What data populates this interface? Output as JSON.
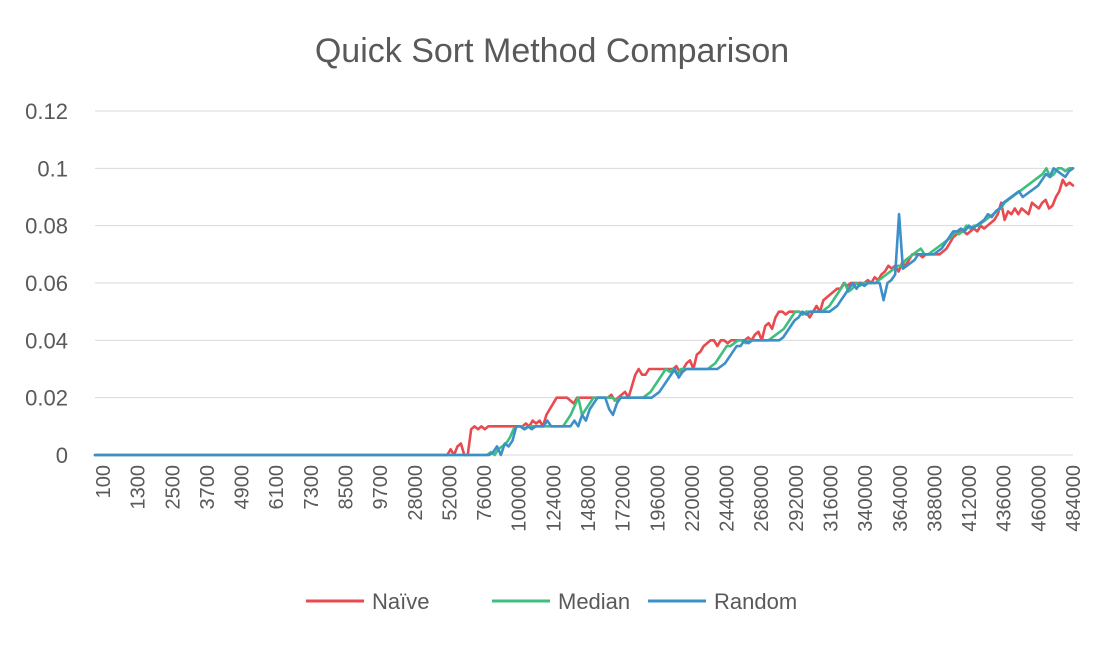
{
  "chart_data": {
    "type": "line",
    "title": "Quick Sort Method Comparison",
    "xlabel": "",
    "ylabel": "",
    "ylim": [
      0,
      0.12
    ],
    "yticks": [
      "0",
      "0.02",
      "0.04",
      "0.06",
      "0.08",
      "0.1",
      "0.12"
    ],
    "grid": true,
    "legend_position": "bottom",
    "x_tick_labels": [
      "100",
      "1300",
      "2500",
      "3700",
      "4900",
      "6100",
      "7300",
      "8500",
      "9700",
      "28000",
      "52000",
      "76000",
      "100000",
      "124000",
      "148000",
      "172000",
      "196000",
      "220000",
      "244000",
      "268000",
      "292000",
      "316000",
      "340000",
      "364000",
      "388000",
      "412000",
      "436000",
      "460000",
      "484000"
    ],
    "series": [
      {
        "name": "Naïve",
        "color": "#e84a4f",
        "values": [
          0,
          0,
          0,
          0,
          0,
          0,
          0,
          0,
          0,
          0,
          0,
          0,
          0,
          0,
          0,
          0,
          0,
          0,
          0,
          0,
          0,
          0,
          0,
          0,
          0,
          0,
          0,
          0,
          0,
          0,
          0,
          0,
          0,
          0,
          0,
          0,
          0,
          0,
          0,
          0,
          0,
          0,
          0,
          0,
          0,
          0,
          0,
          0,
          0,
          0,
          0,
          0,
          0,
          0,
          0,
          0,
          0,
          0,
          0,
          0,
          0,
          0,
          0,
          0,
          0,
          0,
          0,
          0,
          0,
          0,
          0,
          0,
          0,
          0,
          0,
          0,
          0,
          0,
          0,
          0,
          0,
          0,
          0,
          0,
          0,
          0,
          0,
          0,
          0,
          0,
          0,
          0,
          0,
          0,
          0,
          0,
          0,
          0,
          0,
          0,
          0,
          0,
          0,
          0,
          0.002,
          0,
          0.003,
          0.004,
          0,
          0,
          0.009,
          0.01,
          0.009,
          0.01,
          0.009,
          0.01,
          0.01,
          0.01,
          0.01,
          0.01,
          0.01,
          0.01,
          0.01,
          0.01,
          0.01,
          0.01,
          0.011,
          0.01,
          0.012,
          0.011,
          0.012,
          0.01,
          0.014,
          0.016,
          0.018,
          0.02,
          0.02,
          0.02,
          0.02,
          0.019,
          0.018,
          0.02,
          0.02,
          0.02,
          0.02,
          0.02,
          0.02,
          0.02,
          0.02,
          0.02,
          0.02,
          0.021,
          0.019,
          0.02,
          0.021,
          0.022,
          0.02,
          0.024,
          0.028,
          0.03,
          0.028,
          0.028,
          0.03,
          0.03,
          0.03,
          0.03,
          0.03,
          0.03,
          0.03,
          0.03,
          0.031,
          0.029,
          0.03,
          0.032,
          0.033,
          0.03,
          0.035,
          0.036,
          0.038,
          0.039,
          0.04,
          0.04,
          0.038,
          0.04,
          0.04,
          0.039,
          0.04,
          0.04,
          0.04,
          0.04,
          0.04,
          0.041,
          0.04,
          0.042,
          0.043,
          0.04,
          0.045,
          0.046,
          0.044,
          0.048,
          0.05,
          0.05,
          0.049,
          0.05,
          0.05,
          0.05,
          0.05,
          0.049,
          0.05,
          0.048,
          0.05,
          0.052,
          0.05,
          0.054,
          0.055,
          0.056,
          0.057,
          0.058,
          0.058,
          0.06,
          0.059,
          0.06,
          0.06,
          0.06,
          0.06,
          0.06,
          0.061,
          0.06,
          0.062,
          0.061,
          0.063,
          0.064,
          0.066,
          0.065,
          0.066,
          0.064,
          0.067,
          0.066,
          0.068,
          0.07,
          0.07,
          0.07,
          0.069,
          0.07,
          0.07,
          0.07,
          0.07,
          0.07,
          0.071,
          0.072,
          0.074,
          0.076,
          0.077,
          0.078,
          0.078,
          0.077,
          0.078,
          0.079,
          0.078,
          0.08,
          0.079,
          0.08,
          0.081,
          0.082,
          0.084,
          0.088,
          0.082,
          0.085,
          0.084,
          0.086,
          0.084,
          0.086,
          0.085,
          0.084,
          0.088,
          0.087,
          0.086,
          0.088,
          0.089,
          0.086,
          0.087,
          0.09,
          0.092,
          0.096,
          0.094,
          0.095,
          0.094
        ]
      },
      {
        "name": "Median",
        "color": "#3fbf7f",
        "values": [
          0,
          0,
          0,
          0,
          0,
          0,
          0,
          0,
          0,
          0,
          0,
          0,
          0,
          0,
          0,
          0,
          0,
          0,
          0,
          0,
          0,
          0,
          0,
          0,
          0,
          0,
          0,
          0,
          0,
          0,
          0,
          0,
          0,
          0,
          0,
          0,
          0,
          0,
          0,
          0,
          0,
          0,
          0,
          0,
          0,
          0,
          0,
          0,
          0,
          0,
          0,
          0,
          0,
          0,
          0,
          0,
          0,
          0,
          0,
          0,
          0,
          0,
          0,
          0,
          0,
          0,
          0,
          0,
          0,
          0,
          0,
          0,
          0,
          0,
          0,
          0,
          0,
          0,
          0,
          0,
          0,
          0,
          0,
          0,
          0,
          0,
          0,
          0,
          0,
          0,
          0,
          0,
          0,
          0,
          0,
          0,
          0,
          0,
          0,
          0,
          0,
          0,
          0,
          0,
          0.001,
          0,
          0.002,
          0.003,
          0.004,
          0.006,
          0.009,
          0.01,
          0.01,
          0.009,
          0.01,
          0.01,
          0.01,
          0.01,
          0.01,
          0.01,
          0.01,
          0.01,
          0.01,
          0.01,
          0.012,
          0.014,
          0.017,
          0.02,
          0.014,
          0.016,
          0.018,
          0.02,
          0.02,
          0.02,
          0.02,
          0.02,
          0.02,
          0.019,
          0.02,
          0.02,
          0.02,
          0.02,
          0.02,
          0.02,
          0.02,
          0.021,
          0.022,
          0.024,
          0.026,
          0.028,
          0.03,
          0.029,
          0.03,
          0.028,
          0.03,
          0.03,
          0.03,
          0.03,
          0.03,
          0.03,
          0.03,
          0.03,
          0.031,
          0.032,
          0.034,
          0.036,
          0.038,
          0.038,
          0.039,
          0.04,
          0.04,
          0.039,
          0.04,
          0.04,
          0.04,
          0.04,
          0.04,
          0.04,
          0.041,
          0.042,
          0.043,
          0.044,
          0.046,
          0.048,
          0.05,
          0.05,
          0.049,
          0.05,
          0.05,
          0.05,
          0.05,
          0.05,
          0.051,
          0.052,
          0.054,
          0.056,
          0.058,
          0.06,
          0.057,
          0.058,
          0.06,
          0.059,
          0.06,
          0.06,
          0.06,
          0.06,
          0.061,
          0.062,
          0.063,
          0.064,
          0.065,
          0.066,
          0.066,
          0.068,
          0.069,
          0.07,
          0.071,
          0.072,
          0.07,
          0.07,
          0.071,
          0.072,
          0.073,
          0.074,
          0.075,
          0.076,
          0.078,
          0.077,
          0.078,
          0.08,
          0.079,
          0.08,
          0.08,
          0.081,
          0.082,
          0.083,
          0.084,
          0.085,
          0.086,
          0.088,
          0.089,
          0.09,
          0.091,
          0.092,
          0.093,
          0.094,
          0.095,
          0.096,
          0.097,
          0.098,
          0.1,
          0.097,
          0.098,
          0.1,
          0.1,
          0.099,
          0.1,
          0.1
        ]
      },
      {
        "name": "Random",
        "color": "#3d8fc9",
        "values": [
          0,
          0,
          0,
          0,
          0,
          0,
          0,
          0,
          0,
          0,
          0,
          0,
          0,
          0,
          0,
          0,
          0,
          0,
          0,
          0,
          0,
          0,
          0,
          0,
          0,
          0,
          0,
          0,
          0,
          0,
          0,
          0,
          0,
          0,
          0,
          0,
          0,
          0,
          0,
          0,
          0,
          0,
          0,
          0,
          0,
          0,
          0,
          0,
          0,
          0,
          0,
          0,
          0,
          0,
          0,
          0,
          0,
          0,
          0,
          0,
          0,
          0,
          0,
          0,
          0,
          0,
          0,
          0,
          0,
          0,
          0,
          0,
          0,
          0,
          0,
          0,
          0,
          0,
          0,
          0,
          0,
          0,
          0,
          0,
          0,
          0,
          0,
          0,
          0,
          0,
          0,
          0,
          0,
          0,
          0,
          0,
          0,
          0,
          0,
          0,
          0,
          0,
          0,
          0.001,
          0.003,
          0,
          0.004,
          0.003,
          0.005,
          0.01,
          0.01,
          0.009,
          0.01,
          0.009,
          0.01,
          0.01,
          0.01,
          0.012,
          0.01,
          0.01,
          0.01,
          0.01,
          0.01,
          0.01,
          0.012,
          0.01,
          0.014,
          0.012,
          0.016,
          0.018,
          0.02,
          0.02,
          0.02,
          0.016,
          0.014,
          0.018,
          0.02,
          0.02,
          0.02,
          0.02,
          0.02,
          0.02,
          0.02,
          0.02,
          0.02,
          0.021,
          0.022,
          0.024,
          0.026,
          0.028,
          0.03,
          0.027,
          0.029,
          0.03,
          0.03,
          0.03,
          0.03,
          0.03,
          0.03,
          0.03,
          0.03,
          0.03,
          0.031,
          0.032,
          0.034,
          0.036,
          0.038,
          0.038,
          0.04,
          0.039,
          0.04,
          0.04,
          0.04,
          0.04,
          0.04,
          0.04,
          0.04,
          0.04,
          0.041,
          0.043,
          0.045,
          0.047,
          0.048,
          0.05,
          0.049,
          0.05,
          0.05,
          0.05,
          0.05,
          0.05,
          0.05,
          0.051,
          0.052,
          0.054,
          0.056,
          0.058,
          0.06,
          0.058,
          0.06,
          0.059,
          0.06,
          0.06,
          0.06,
          0.06,
          0.054,
          0.06,
          0.061,
          0.063,
          0.084,
          0.065,
          0.066,
          0.067,
          0.068,
          0.07,
          0.07,
          0.07,
          0.07,
          0.07,
          0.071,
          0.072,
          0.074,
          0.076,
          0.078,
          0.078,
          0.079,
          0.078,
          0.08,
          0.079,
          0.08,
          0.081,
          0.082,
          0.084,
          0.083,
          0.085,
          0.086,
          0.088,
          0.089,
          0.09,
          0.091,
          0.092,
          0.09,
          0.091,
          0.092,
          0.093,
          0.094,
          0.096,
          0.098,
          0.097,
          0.1,
          0.099,
          0.098,
          0.097,
          0.099,
          0.1
        ]
      }
    ]
  }
}
